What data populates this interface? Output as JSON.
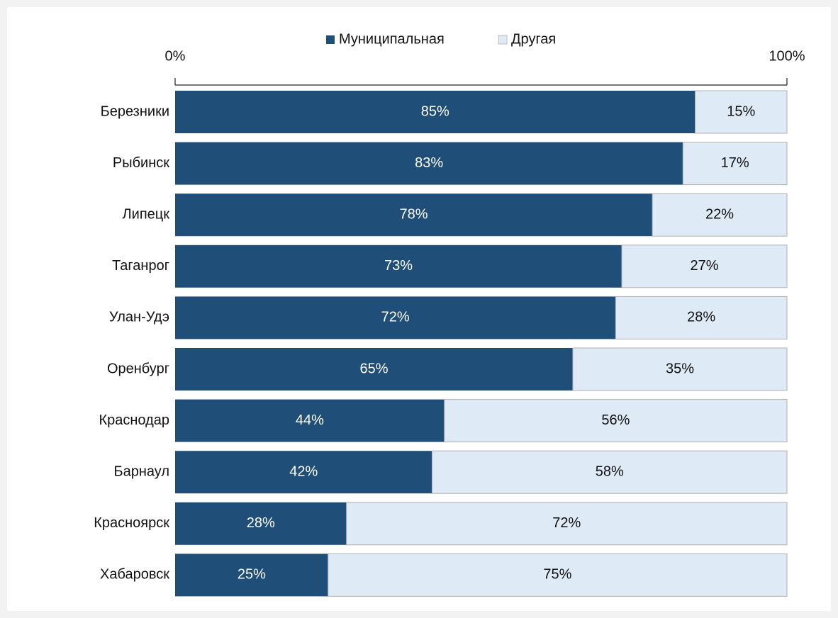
{
  "chart_data": {
    "type": "stacked-bar-horizontal",
    "categories": [
      "Березники",
      "Рыбинск",
      "Липецк",
      "Таганрог",
      "Улан-Удэ",
      "Оренбург",
      "Краснодар",
      "Барнаул",
      "Красноярск",
      "Хабаровск"
    ],
    "series": [
      {
        "name": "Муниципальная",
        "color": "#1f4e79",
        "values": [
          85,
          83,
          78,
          73,
          72,
          65,
          44,
          42,
          28,
          25
        ],
        "value_labels": [
          "85%",
          "83%",
          "78%",
          "73%",
          "72%",
          "65%",
          "44%",
          "42%",
          "28%",
          "25%"
        ]
      },
      {
        "name": "Другая",
        "color": "#deeaf6",
        "values": [
          15,
          17,
          22,
          27,
          28,
          35,
          56,
          58,
          72,
          75
        ],
        "value_labels": [
          "15%",
          "17%",
          "22%",
          "27%",
          "28%",
          "35%",
          "56%",
          "58%",
          "72%",
          "75%"
        ]
      }
    ],
    "xlim": [
      0,
      100
    ],
    "xticks": [
      {
        "value": 0,
        "label": "0%"
      },
      {
        "value": 100,
        "label": "100%"
      }
    ],
    "legend": "top"
  }
}
